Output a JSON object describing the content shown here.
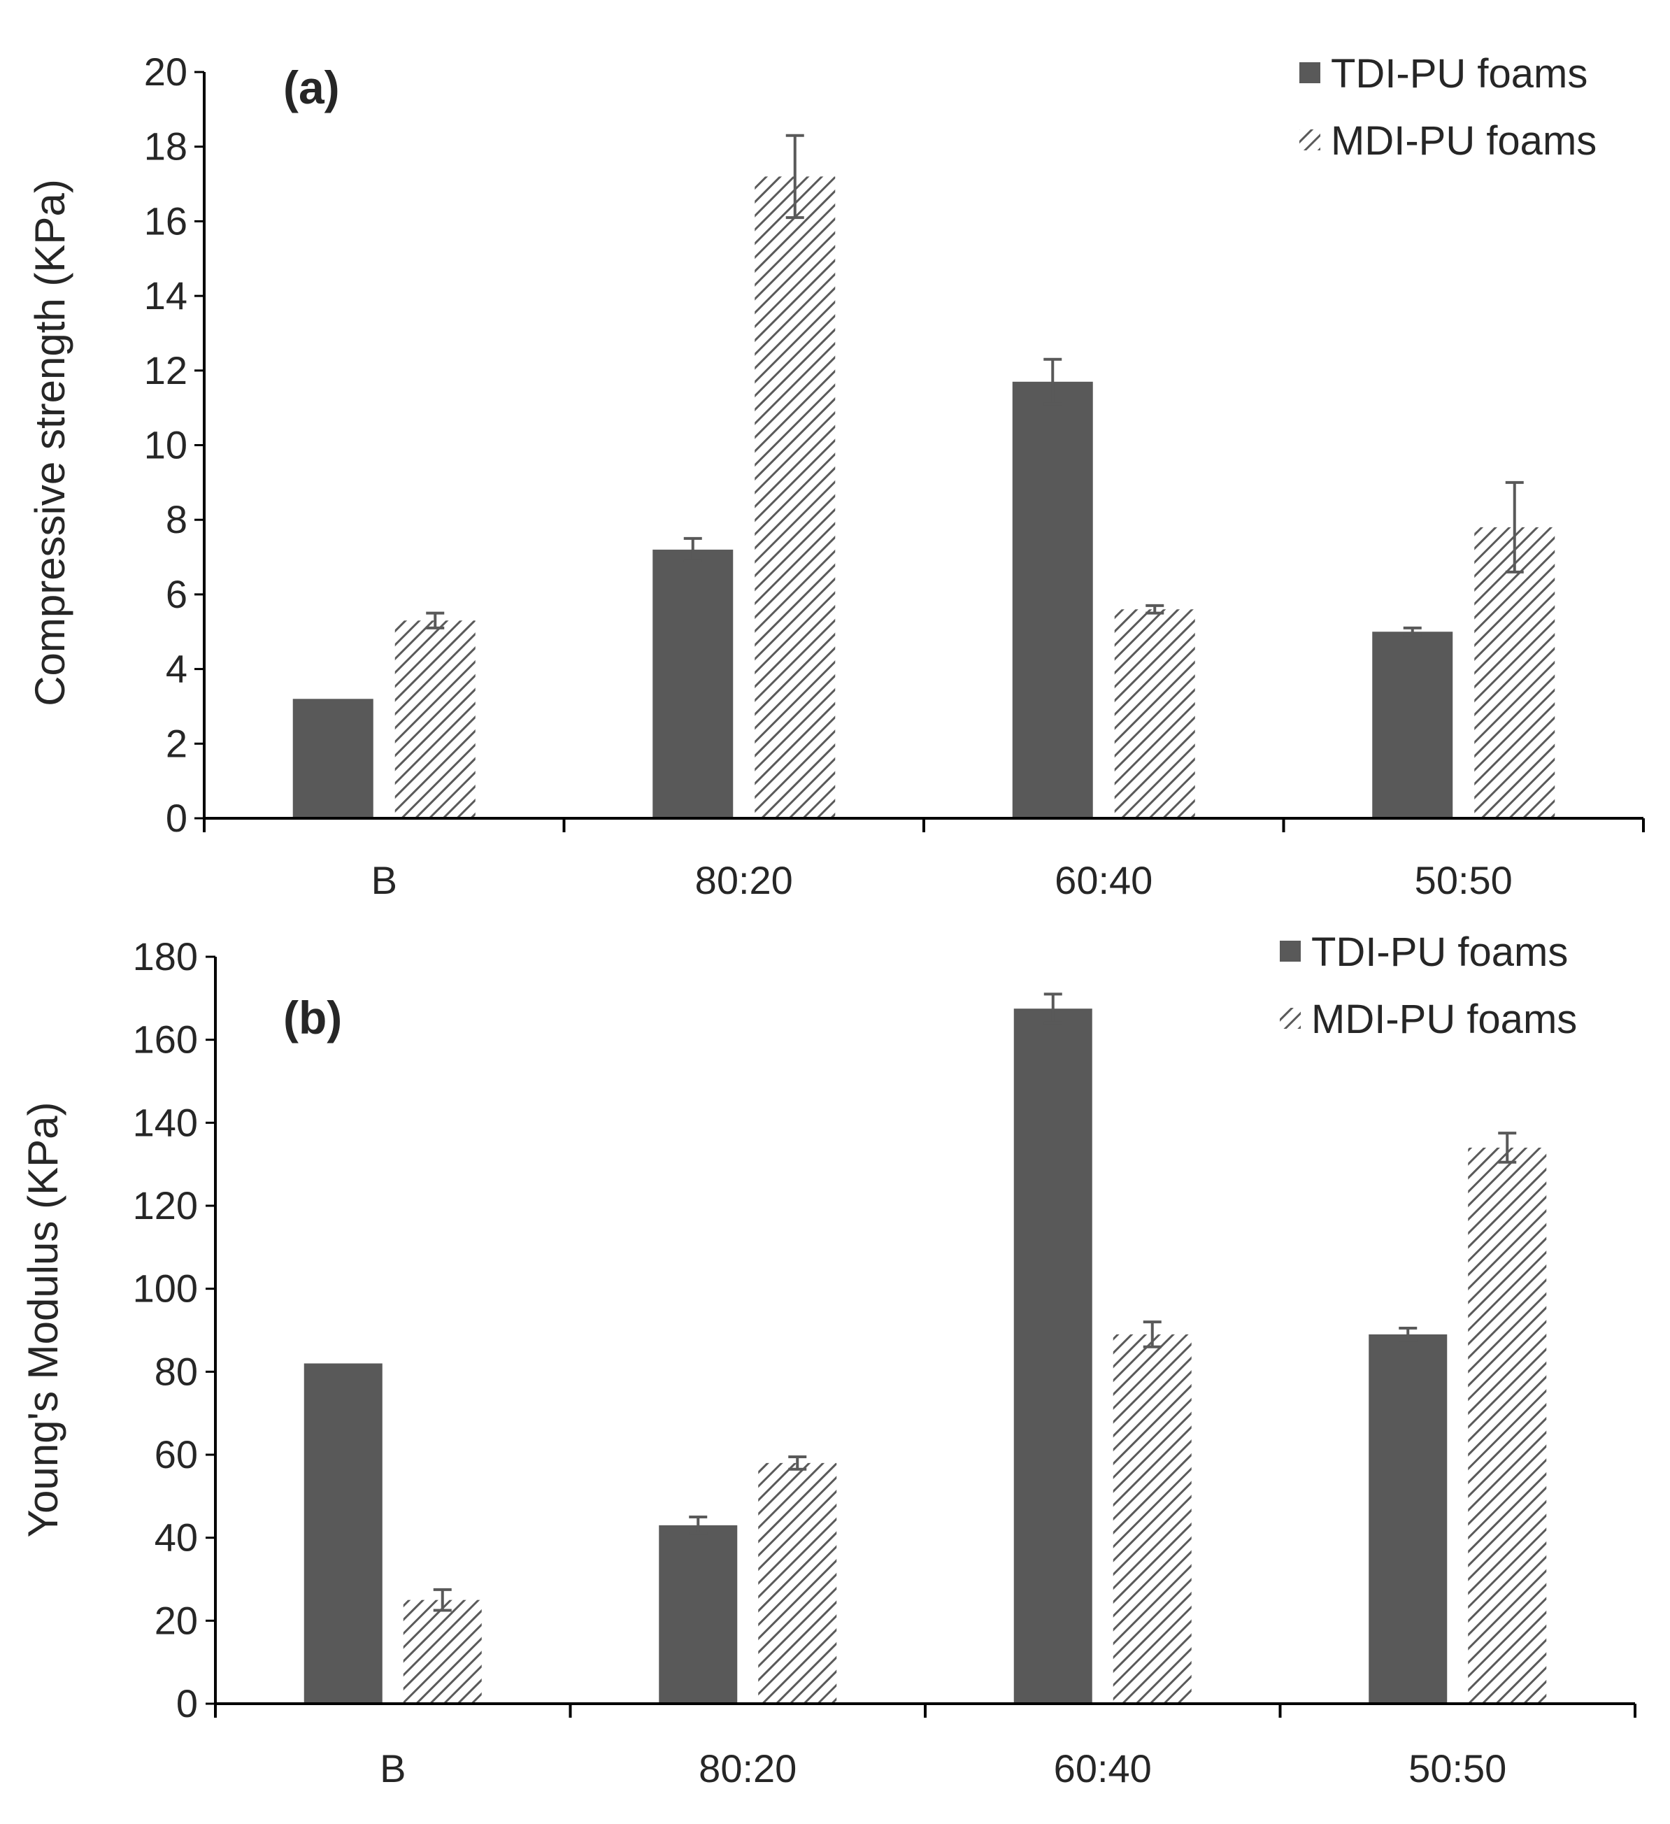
{
  "colors": {
    "tdi_fill": "#595959",
    "mdi_hatch": "#5a5a5a",
    "axis": "#000000",
    "error_bar": "#595959",
    "background": "#ffffff"
  },
  "chart_data": [
    {
      "type": "bar",
      "panel_label": "(a)",
      "ylabel": "Compressive strength (KPa)",
      "xlabel": "",
      "categories": [
        "B",
        "80:20",
        "60:40",
        "50:50"
      ],
      "ylim": [
        0,
        20
      ],
      "yticks": [
        0,
        2,
        4,
        6,
        8,
        10,
        12,
        14,
        16,
        18,
        20
      ],
      "grid": false,
      "legend_position": "top-right",
      "series": [
        {
          "name": "TDI-PU foams",
          "pattern": "solid",
          "values": [
            3.2,
            7.2,
            11.7,
            5.0
          ],
          "errors": [
            0,
            0.3,
            0.6,
            0.1
          ]
        },
        {
          "name": "MDI-PU foams",
          "pattern": "hatched",
          "values": [
            5.3,
            17.2,
            5.6,
            7.8
          ],
          "errors": [
            0.2,
            1.1,
            0.1,
            1.2
          ]
        }
      ]
    },
    {
      "type": "bar",
      "panel_label": "(b)",
      "ylabel": "Young's Modulus (KPa)",
      "xlabel": "",
      "categories": [
        "B",
        "80:20",
        "60:40",
        "50:50"
      ],
      "ylim": [
        0,
        180
      ],
      "yticks": [
        0,
        20,
        40,
        60,
        80,
        100,
        120,
        140,
        160,
        180
      ],
      "grid": false,
      "legend_position": "top-right",
      "series": [
        {
          "name": "TDI-PU foams",
          "pattern": "solid",
          "values": [
            82,
            43,
            167.5,
            89
          ],
          "errors": [
            0,
            2,
            3.5,
            1.5
          ]
        },
        {
          "name": "MDI-PU foams",
          "pattern": "hatched",
          "values": [
            25,
            58,
            89,
            134
          ],
          "errors": [
            2.5,
            1.5,
            3,
            3.5
          ]
        }
      ]
    }
  ]
}
